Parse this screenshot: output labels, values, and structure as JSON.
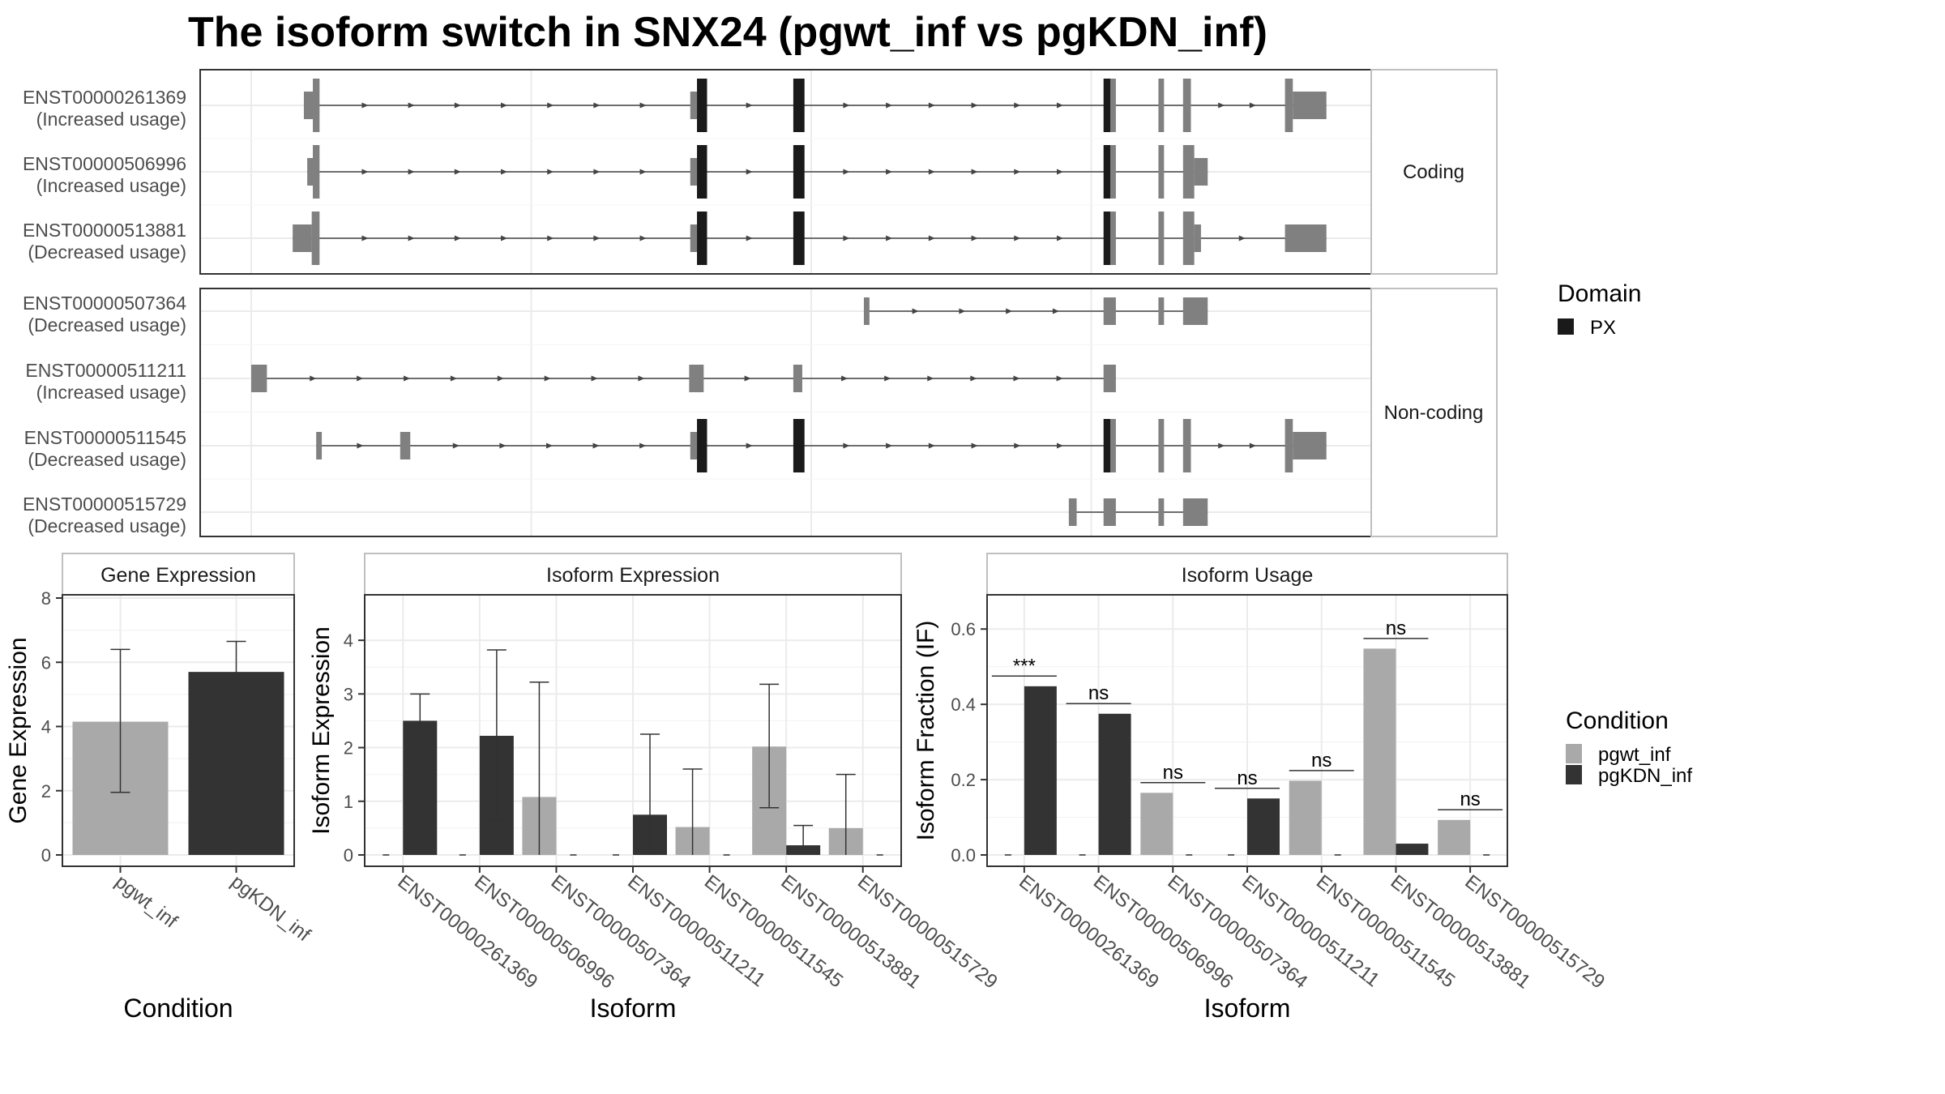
{
  "title": "The isoform switch in SNX24 (pgwt_inf vs pgKDN_inf)",
  "colors": {
    "pgwt_inf": "#a9a9a9",
    "pgKDN_inf": "#333333",
    "exon": "#808080",
    "domain": "#1a1a1a",
    "strip_border": "#bfbfbf",
    "grid": "#ebebeb"
  },
  "chart_data": [
    {
      "type": "gene_structure",
      "genomic_range": [
        0,
        100
      ],
      "facets": [
        {
          "label": "Coding",
          "transcripts": [
            {
              "id": "ENST00000261369",
              "usage": "(Increased usage)",
              "exons": [
                [
                  4.7,
                  5.5,
                  "utr"
                ],
                [
                  5.5,
                  6.1,
                  "cds"
                ],
                [
                  39.2,
                  39.8,
                  "utr"
                ],
                [
                  39.8,
                  40.7,
                  "px"
                ],
                [
                  48.4,
                  49.4,
                  "px"
                ],
                [
                  76.1,
                  76.7,
                  "px"
                ],
                [
                  76.7,
                  77.2,
                  "cds"
                ],
                [
                  81.0,
                  81.5,
                  "cds"
                ],
                [
                  83.2,
                  83.9,
                  "cds"
                ],
                [
                  92.3,
                  93.0,
                  "cds"
                ],
                [
                  93.0,
                  96.0,
                  "utr"
                ]
              ]
            },
            {
              "id": "ENST00000506996",
              "usage": "(Increased usage)",
              "exons": [
                [
                  5.0,
                  5.5,
                  "utr"
                ],
                [
                  5.5,
                  6.1,
                  "cds"
                ],
                [
                  39.2,
                  39.8,
                  "utr"
                ],
                [
                  39.8,
                  40.7,
                  "px"
                ],
                [
                  48.4,
                  49.4,
                  "px"
                ],
                [
                  76.1,
                  76.7,
                  "px"
                ],
                [
                  76.7,
                  77.2,
                  "cds"
                ],
                [
                  81.0,
                  81.5,
                  "cds"
                ],
                [
                  83.2,
                  84.2,
                  "cds"
                ],
                [
                  84.2,
                  85.4,
                  "utr"
                ]
              ]
            },
            {
              "id": "ENST00000513881",
              "usage": "(Decreased usage)",
              "exons": [
                [
                  3.7,
                  5.4,
                  "utr"
                ],
                [
                  5.4,
                  6.1,
                  "cds"
                ],
                [
                  39.2,
                  39.8,
                  "utr"
                ],
                [
                  39.8,
                  40.7,
                  "px"
                ],
                [
                  48.4,
                  49.4,
                  "px"
                ],
                [
                  76.1,
                  76.7,
                  "px"
                ],
                [
                  76.7,
                  77.2,
                  "cds"
                ],
                [
                  81.0,
                  81.5,
                  "cds"
                ],
                [
                  83.2,
                  84.2,
                  "cds"
                ],
                [
                  84.2,
                  84.8,
                  "utr"
                ],
                [
                  92.3,
                  96.0,
                  "utr"
                ]
              ]
            }
          ]
        },
        {
          "label": "Non-coding",
          "transcripts": [
            {
              "id": "ENST00000507364",
              "usage": "(Decreased usage)",
              "exons": [
                [
                  54.7,
                  55.2,
                  "utr"
                ],
                [
                  76.1,
                  77.2,
                  "utr"
                ],
                [
                  81.0,
                  81.5,
                  "utr"
                ],
                [
                  83.2,
                  85.4,
                  "utr"
                ]
              ]
            },
            {
              "id": "ENST00000511211",
              "usage": "(Increased usage)",
              "exons": [
                [
                  0.0,
                  1.4,
                  "utr"
                ],
                [
                  39.1,
                  40.4,
                  "utr"
                ],
                [
                  48.4,
                  49.2,
                  "utr"
                ],
                [
                  76.1,
                  77.2,
                  "utr"
                ]
              ]
            },
            {
              "id": "ENST00000511545",
              "usage": "(Decreased usage)",
              "exons": [
                [
                  5.8,
                  6.3,
                  "utr"
                ],
                [
                  13.3,
                  14.2,
                  "utr"
                ],
                [
                  39.2,
                  39.8,
                  "utr"
                ],
                [
                  39.8,
                  40.7,
                  "px"
                ],
                [
                  48.4,
                  49.4,
                  "px"
                ],
                [
                  76.1,
                  76.7,
                  "px"
                ],
                [
                  76.7,
                  77.2,
                  "cds"
                ],
                [
                  81.0,
                  81.5,
                  "cds"
                ],
                [
                  83.2,
                  83.9,
                  "cds"
                ],
                [
                  92.3,
                  93.0,
                  "cds"
                ],
                [
                  93.0,
                  96.0,
                  "utr"
                ]
              ]
            },
            {
              "id": "ENST00000515729",
              "usage": "(Decreased usage)",
              "exons": [
                [
                  73.0,
                  73.7,
                  "utr"
                ],
                [
                  76.1,
                  77.2,
                  "utr"
                ],
                [
                  81.0,
                  81.5,
                  "utr"
                ],
                [
                  83.2,
                  85.4,
                  "utr"
                ]
              ]
            }
          ]
        }
      ],
      "legend": {
        "title": "Domain",
        "items": [
          "PX"
        ]
      }
    },
    {
      "type": "bar",
      "strip": "Gene Expression",
      "xlabel": "Condition",
      "ylabel": "Gene Expression",
      "ylim": [
        0,
        8
      ],
      "yticks": [
        0,
        2,
        4,
        6,
        8
      ],
      "categories": [
        "pgwt_inf",
        "pgKDN_inf"
      ],
      "values": [
        4.15,
        5.7
      ],
      "error": [
        [
          1.95,
          6.4
        ],
        [
          4.75,
          6.65
        ]
      ]
    },
    {
      "type": "bar",
      "strip": "Isoform Expression",
      "xlabel": "Isoform",
      "ylabel": "Isoform Expression",
      "ylim": [
        0,
        4.5
      ],
      "yticks": [
        0,
        1,
        2,
        3,
        4
      ],
      "categories": [
        "ENST00000261369",
        "ENST00000506996",
        "ENST00000507364",
        "ENST00000511211",
        "ENST00000511545",
        "ENST00000513881",
        "ENST00000515729"
      ],
      "series": [
        {
          "name": "pgwt_inf",
          "values": [
            0,
            0,
            1.08,
            0,
            0.52,
            2.02,
            0.5
          ],
          "error": [
            [
              0,
              0
            ],
            [
              0,
              0
            ],
            [
              0,
              3.22
            ],
            [
              0,
              0
            ],
            [
              0,
              1.6
            ],
            [
              0.88,
              3.18
            ],
            [
              0,
              1.5
            ]
          ]
        },
        {
          "name": "pgKDN_inf",
          "values": [
            2.5,
            2.22,
            0,
            0.75,
            0,
            0.18,
            0
          ],
          "error": [
            [
              2.05,
              3.0
            ],
            [
              0.65,
              3.82
            ],
            [
              0,
              0
            ],
            [
              0,
              2.25
            ],
            [
              0,
              0
            ],
            [
              0,
              0.55
            ],
            [
              0,
              0
            ]
          ]
        }
      ]
    },
    {
      "type": "bar",
      "strip": "Isoform Usage",
      "xlabel": "Isoform",
      "ylabel": "Isoform Fraction (IF)",
      "ylim": [
        0,
        0.65
      ],
      "yticks": [
        "0.0",
        "0.2",
        "0.4",
        "0.6"
      ],
      "categories": [
        "ENST00000261369",
        "ENST00000506996",
        "ENST00000507364",
        "ENST00000511211",
        "ENST00000511545",
        "ENST00000513881",
        "ENST00000515729"
      ],
      "series": [
        {
          "name": "pgwt_inf",
          "values": [
            0,
            0,
            0.165,
            0,
            0.197,
            0.548,
            0.093
          ]
        },
        {
          "name": "pgKDN_inf",
          "values": [
            0.448,
            0.375,
            0,
            0.15,
            0,
            0.03,
            0
          ]
        }
      ],
      "significance": [
        "***",
        "ns",
        "ns",
        "ns",
        "ns",
        "ns",
        "ns"
      ],
      "sig_heights": [
        0.475,
        0.402,
        0.192,
        0.177,
        0.224,
        0.575,
        0.12
      ]
    }
  ],
  "condition_legend": {
    "title": "Condition",
    "items": [
      "pgwt_inf",
      "pgKDN_inf"
    ]
  }
}
